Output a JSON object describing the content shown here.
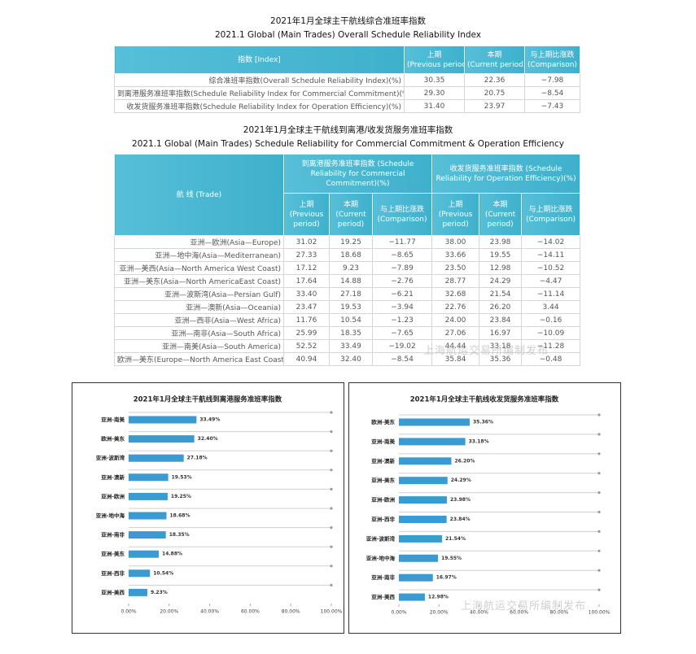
{
  "table1": {
    "title_cn": "2021年1月全球主干航线综合准班率指数",
    "title_en": "2021.1 Global (Main Trades) Overall Schedule Reliability Index",
    "header": [
      {
        "cn": "指数 [Index]",
        "en": ""
      },
      {
        "cn": "上期",
        "en": "(Previous period)"
      },
      {
        "cn": "本期",
        "en": "(Current period)"
      },
      {
        "cn": "与上期比涨跌",
        "en": "(Comparison)"
      }
    ],
    "rows": [
      [
        "综合准班率指数(Overall Schedule Reliability Index)(%)",
        "30.35",
        "22.36",
        "−7.98"
      ],
      [
        "到离港服务准班率指数(Schedule Reliability Index for Commercial Commitment)(%)",
        "29.30",
        "20.75",
        "−8.54"
      ],
      [
        "收发货服务准班率指数(Schedule Reliability Index for Operation Efficiency)(%)",
        "31.40",
        "23.97",
        "−7.43"
      ]
    ]
  },
  "table2": {
    "title_cn": "2021年1月全球主干航线到离港/收发货服务准班率指数",
    "title_en": "2021.1 Global (Main Trades) Schedule Reliability for Commercial Commitment & Operation Efficiency",
    "trade_header": "航 线 (Trade)",
    "groups": [
      "到离港服务准班率指数 (Schedule Reliability for Commercial Commitment)(%)",
      "收发货服务准班率指数 (Schedule Reliability for Operation Efficiency)(%)"
    ],
    "subheader": [
      {
        "cn": "上期",
        "en": "(Previous period)"
      },
      {
        "cn": "本期",
        "en": "(Current period)"
      },
      {
        "cn": "与上期比涨跌",
        "en": "(Comparison)"
      }
    ],
    "rows": [
      [
        "亚洲—欧洲(Asia—Europe)",
        "31.02",
        "19.25",
        "−11.77",
        "38.00",
        "23.98",
        "−14.02"
      ],
      [
        "亚洲—地中海(Asia—Mediterranean)",
        "27.33",
        "18.68",
        "−8.65",
        "33.66",
        "19.55",
        "−14.11"
      ],
      [
        "亚洲—美西(Asia—North America West Coast)",
        "17.12",
        "9.23",
        "−7.89",
        "23.50",
        "12.98",
        "−10.52"
      ],
      [
        "亚洲—美东(Asia—North AmericaEast Coast)",
        "17.64",
        "14.88",
        "−2.76",
        "28.77",
        "24.29",
        "−4.47"
      ],
      [
        "亚洲—波斯湾(Asia—Persian Gulf)",
        "33.40",
        "27.18",
        "−6.21",
        "32.68",
        "21.54",
        "−11.14"
      ],
      [
        "亚洲—澳新(Asia—Oceania)",
        "23.47",
        "19.53",
        "−3.94",
        "22.76",
        "26.20",
        "3.44"
      ],
      [
        "亚洲—西非(Asia—West Africa)",
        "11.76",
        "10.54",
        "−1.23",
        "24.00",
        "23.84",
        "−0.16"
      ],
      [
        "亚洲—南非(Asia—South Africa)",
        "25.99",
        "18.35",
        "−7.65",
        "27.06",
        "16.97",
        "−10.09"
      ],
      [
        "亚洲—南美(Asia—South America)",
        "52.52",
        "33.49",
        "−19.02",
        "44.44",
        "33.18",
        "−11.28"
      ],
      [
        "欧洲—美东(Europe—North America East Coast)",
        "40.94",
        "32.40",
        "−8.54",
        "35.84",
        "35.36",
        "−0.48"
      ]
    ]
  },
  "watermark": "上海航运交易所编制发布",
  "chart_data": [
    {
      "type": "hbar",
      "title": "2021年1月全球主干航线到离港服务准班率指数",
      "categories": [
        "亚洲-南美",
        "欧洲-美东",
        "亚洲-波斯湾",
        "亚洲-澳新",
        "亚洲-欧洲",
        "亚洲-地中海",
        "亚洲-南非",
        "亚洲-美东",
        "亚洲-西非",
        "亚洲-美西"
      ],
      "values": [
        33.49,
        32.4,
        27.18,
        19.53,
        19.25,
        18.68,
        18.35,
        14.88,
        10.54,
        9.23
      ],
      "value_labels": [
        "33.49%",
        "32.40%",
        "27.18%",
        "19.53%",
        "19.25%",
        "18.68%",
        "18.35%",
        "14.88%",
        "10.54%",
        "9.23%"
      ],
      "color": "#3a9bd2",
      "xlim": [
        0,
        100
      ],
      "xticks": [
        {
          "value": 0,
          "label": "0.00%"
        },
        {
          "value": 20,
          "label": "20.00%"
        },
        {
          "value": 40,
          "label": "40.00%"
        },
        {
          "value": 60,
          "label": "60.00%"
        },
        {
          "value": 80,
          "label": "80.00%"
        },
        {
          "value": 100,
          "label": "100.00%"
        }
      ]
    },
    {
      "type": "hbar",
      "title": "2021年1月全球主干航线收发货服务准班率指数",
      "categories": [
        "欧洲-美东",
        "亚洲-南美",
        "亚洲-澳新",
        "亚洲-美东",
        "亚洲-欧洲",
        "亚洲-西非",
        "亚洲-波斯湾",
        "亚洲-地中海",
        "亚洲-南非",
        "亚洲-美西"
      ],
      "values": [
        35.36,
        33.18,
        26.2,
        24.29,
        23.98,
        23.84,
        21.54,
        19.55,
        16.97,
        12.98
      ],
      "value_labels": [
        "35.36%",
        "33.18%",
        "26.20%",
        "24.29%",
        "23.98%",
        "23.84%",
        "21.54%",
        "19.55%",
        "16.97%",
        "12.98%"
      ],
      "color": "#3a9bd2",
      "xlim": [
        0,
        100
      ],
      "xticks": [
        {
          "value": 0,
          "label": "0.00%"
        },
        {
          "value": 20,
          "label": "20.00%"
        },
        {
          "value": 40,
          "label": "40.00%"
        },
        {
          "value": 60,
          "label": "60.00%"
        },
        {
          "value": 80,
          "label": "80.00%"
        },
        {
          "value": 100,
          "label": "100.00%"
        }
      ]
    }
  ]
}
